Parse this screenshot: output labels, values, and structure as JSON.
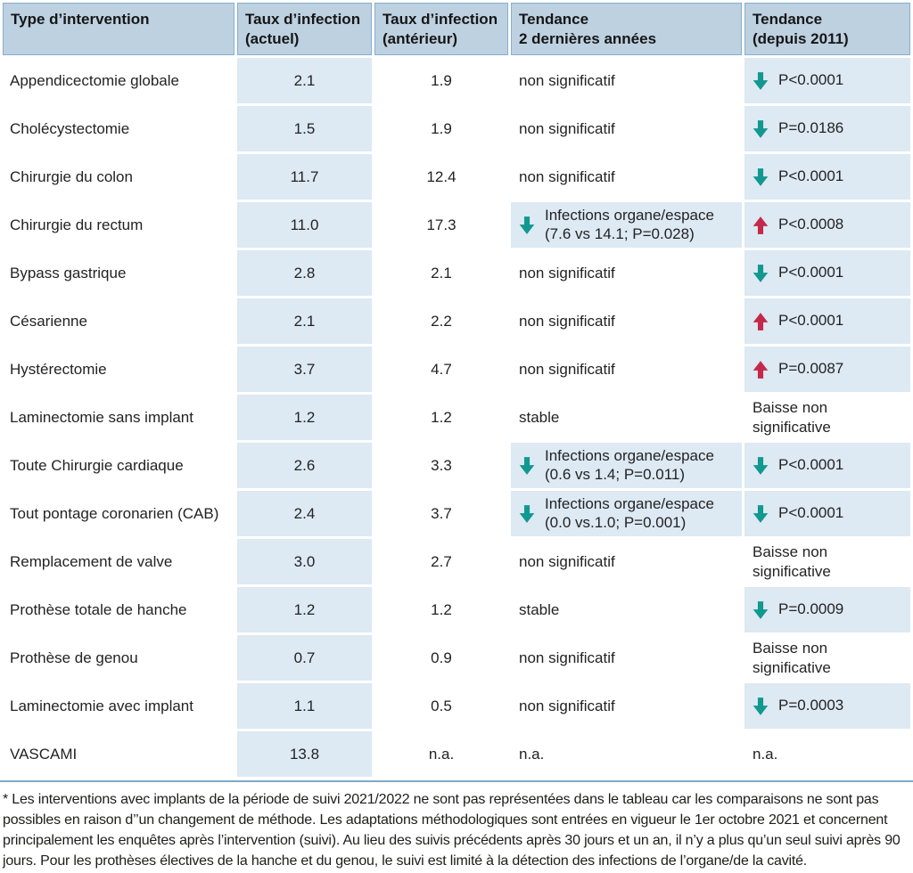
{
  "table": {
    "headers": [
      "Type d’intervention",
      "Taux d’infection\n(actuel)",
      "Taux d’infection\n(antérieur)",
      "Tendance\n2 dernières années",
      "Tendance\n(depuis 2011)"
    ],
    "rows": [
      {
        "name": "Appendicectomie globale",
        "actuel": "2.1",
        "anterieur": "1.9",
        "trend2y": {
          "text": "non significatif",
          "arrow": null,
          "detail": null,
          "highlight": false
        },
        "trend2011": {
          "text": "P<0.0001",
          "arrow": "down",
          "detail": null,
          "highlight": true
        }
      },
      {
        "name": "Cholécystectomie",
        "actuel": "1.5",
        "anterieur": "1.9",
        "trend2y": {
          "text": "non significatif",
          "arrow": null,
          "detail": null,
          "highlight": false
        },
        "trend2011": {
          "text": "P=0.0186",
          "arrow": "down",
          "detail": null,
          "highlight": true
        }
      },
      {
        "name": "Chirurgie du colon",
        "actuel": "11.7",
        "anterieur": "12.4",
        "trend2y": {
          "text": "non significatif",
          "arrow": null,
          "detail": null,
          "highlight": false
        },
        "trend2011": {
          "text": "P<0.0001",
          "arrow": "down",
          "detail": null,
          "highlight": true
        }
      },
      {
        "name": "Chirurgie du rectum",
        "actuel": "11.0",
        "anterieur": "17.3",
        "trend2y": {
          "text": "Infections organe/espace",
          "arrow": "down",
          "detail": "(7.6 vs 14.1; P=0.028)",
          "highlight": true
        },
        "trend2011": {
          "text": "P<0.0008",
          "arrow": "up",
          "detail": null,
          "highlight": true
        }
      },
      {
        "name": "Bypass gastrique",
        "actuel": "2.8",
        "anterieur": "2.1",
        "trend2y": {
          "text": "non significatif",
          "arrow": null,
          "detail": null,
          "highlight": false
        },
        "trend2011": {
          "text": "P<0.0001",
          "arrow": "down",
          "detail": null,
          "highlight": true
        }
      },
      {
        "name": "Césarienne",
        "actuel": "2.1",
        "anterieur": "2.2",
        "trend2y": {
          "text": "non significatif",
          "arrow": null,
          "detail": null,
          "highlight": false
        },
        "trend2011": {
          "text": "P<0.0001",
          "arrow": "up",
          "detail": null,
          "highlight": true
        }
      },
      {
        "name": "Hystérectomie",
        "actuel": "3.7",
        "anterieur": "4.7",
        "trend2y": {
          "text": "non significatif",
          "arrow": null,
          "detail": null,
          "highlight": false
        },
        "trend2011": {
          "text": "P=0.0087",
          "arrow": "up",
          "detail": null,
          "highlight": true
        }
      },
      {
        "name": "Laminectomie sans implant",
        "actuel": "1.2",
        "anterieur": "1.2",
        "trend2y": {
          "text": "stable",
          "arrow": null,
          "detail": null,
          "highlight": false
        },
        "trend2011": {
          "text": "Baisse non significative",
          "arrow": null,
          "detail": null,
          "highlight": false
        }
      },
      {
        "name": "Toute Chirurgie cardiaque",
        "actuel": "2.6",
        "anterieur": "3.3",
        "trend2y": {
          "text": "Infections organe/espace",
          "arrow": "down",
          "detail": "(0.6 vs 1.4; P=0.011)",
          "highlight": true
        },
        "trend2011": {
          "text": "P<0.0001",
          "arrow": "down",
          "detail": null,
          "highlight": true
        }
      },
      {
        "name": "Tout pontage coronarien (CAB)",
        "actuel": "2.4",
        "anterieur": "3.7",
        "trend2y": {
          "text": "Infections organe/espace",
          "arrow": "down",
          "detail": "(0.0 vs.1.0; P=0.001)",
          "highlight": true
        },
        "trend2011": {
          "text": "P<0.0001",
          "arrow": "down",
          "detail": null,
          "highlight": true
        }
      },
      {
        "name": "Remplacement de valve",
        "actuel": "3.0",
        "anterieur": "2.7",
        "trend2y": {
          "text": "non significatif",
          "arrow": null,
          "detail": null,
          "highlight": false
        },
        "trend2011": {
          "text": "Baisse non significative",
          "arrow": null,
          "detail": null,
          "highlight": false
        }
      },
      {
        "name": "Prothèse totale de hanche",
        "actuel": "1.2",
        "anterieur": "1.2",
        "trend2y": {
          "text": "stable",
          "arrow": null,
          "detail": null,
          "highlight": false
        },
        "trend2011": {
          "text": "P=0.0009",
          "arrow": "down",
          "detail": null,
          "highlight": true
        }
      },
      {
        "name": "Prothèse de genou",
        "actuel": "0.7",
        "anterieur": "0.9",
        "trend2y": {
          "text": "non significatif",
          "arrow": null,
          "detail": null,
          "highlight": false
        },
        "trend2011": {
          "text": "Baisse non significative",
          "arrow": null,
          "detail": null,
          "highlight": false
        }
      },
      {
        "name": "Laminectomie avec implant",
        "actuel": "1.1",
        "anterieur": "0.5",
        "trend2y": {
          "text": "non significatif",
          "arrow": null,
          "detail": null,
          "highlight": false
        },
        "trend2011": {
          "text": "P=0.0003",
          "arrow": "down",
          "detail": null,
          "highlight": true
        }
      },
      {
        "name": "VASCAMI",
        "actuel": "13.8",
        "anterieur": "n.a.",
        "trend2y": {
          "text": "n.a.",
          "arrow": null,
          "detail": null,
          "highlight": false
        },
        "trend2011": {
          "text": "n.a.",
          "arrow": null,
          "detail": null,
          "highlight": false
        }
      }
    ]
  },
  "icons": {
    "down_arrow": "down-arrow-icon",
    "up_arrow": "up-arrow-icon"
  },
  "colors": {
    "header_bg": "#bdd1e1",
    "header_border": "#88afcb",
    "cell_highlight_blue": "#dde9f3",
    "teal_arrow": "#12988f",
    "red_arrow": "#c4294a",
    "bottom_rule": "#7ea9c5",
    "text": "#232323"
  },
  "footnote": "* Les interventions avec implants de la période de suivi 2021/2022 ne sont pas représentées dans le tableau car les comparaisons ne sont pas possibles en raison d’’un changement de méthode. Les adaptations méthodologiques sont entrées en vigueur le 1er octobre 2021 et concernent principalement les enquêtes après l’intervention (suivi). Au lieu des suivis précédents après 30 jours et un an, il n’y a plus qu’un seul suivi après 90 jours. Pour les prothèses électives de la hanche et du genou, le suivi est limité à la détection des infections de l’organe/de la cavité."
}
